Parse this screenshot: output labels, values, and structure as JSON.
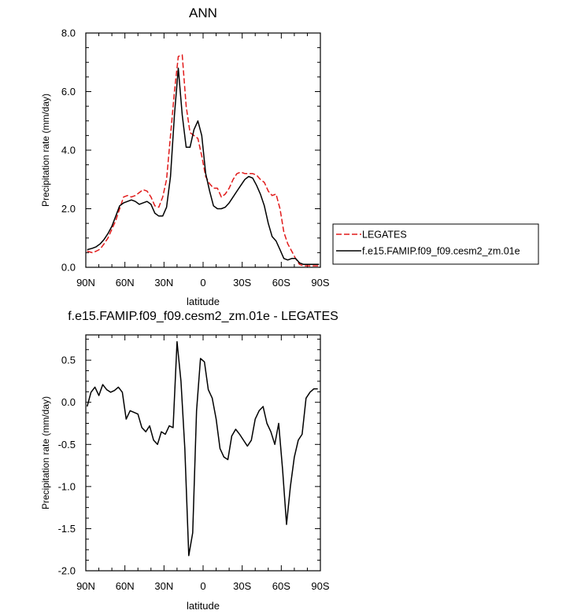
{
  "chart_data": [
    {
      "type": "line",
      "title": "ANN",
      "xlabel": "latitude",
      "ylabel": "Precipitation rate (mm/day)",
      "xlim": [
        90,
        -90
      ],
      "ylim": [
        0,
        8
      ],
      "x_ticks": [
        90,
        60,
        30,
        0,
        -30,
        -60,
        -90
      ],
      "x_tick_labels": [
        "90N",
        "60N",
        "30N",
        "0",
        "30S",
        "60S",
        "90S"
      ],
      "y_ticks": [
        0,
        2,
        4,
        6,
        8
      ],
      "y_tick_labels": [
        "0.0",
        "2.0",
        "4.0",
        "6.0",
        "8.0"
      ],
      "legend_position": "right",
      "series": [
        {
          "name": "LEGATES",
          "color": "#e11a1a",
          "style": "dashed",
          "x": [
            89,
            85,
            82,
            79,
            76,
            73,
            70,
            67,
            64,
            61,
            58,
            55,
            52,
            49,
            46,
            43,
            40,
            37,
            34,
            31,
            28,
            25,
            22,
            19,
            16,
            13,
            10,
            7,
            4,
            1,
            -2,
            -5,
            -8,
            -11,
            -14,
            -17,
            -20,
            -23,
            -26,
            -29,
            -32,
            -35,
            -38,
            -41,
            -44,
            -47,
            -50,
            -53,
            -56,
            -59,
            -62,
            -65,
            -68,
            -71,
            -74,
            -77,
            -80,
            -83,
            -86,
            -89
          ],
          "values": [
            0.55,
            0.5,
            0.55,
            0.62,
            0.8,
            1.0,
            1.3,
            1.6,
            2.0,
            2.4,
            2.45,
            2.4,
            2.45,
            2.55,
            2.65,
            2.6,
            2.4,
            2.1,
            2.05,
            2.4,
            3.0,
            4.5,
            6.0,
            7.2,
            7.25,
            5.5,
            4.6,
            4.5,
            4.4,
            3.8,
            3.1,
            2.85,
            2.7,
            2.7,
            2.4,
            2.5,
            2.7,
            3.0,
            3.2,
            3.25,
            3.2,
            3.2,
            3.2,
            3.15,
            3.0,
            2.9,
            2.6,
            2.45,
            2.5,
            2.0,
            1.2,
            0.8,
            0.55,
            0.3,
            0.1,
            0.05,
            0.05,
            0.05,
            0.05,
            0.05
          ]
        },
        {
          "name": "f.e15.FAMIP.f09_f09.cesm2_zm.01e",
          "color": "#000000",
          "style": "solid",
          "x": [
            89,
            85,
            82,
            79,
            76,
            73,
            70,
            67,
            64,
            61,
            58,
            55,
            52,
            49,
            46,
            43,
            40,
            37,
            34,
            31,
            28,
            25,
            22,
            19,
            16,
            13,
            10,
            7,
            4,
            1,
            -2,
            -5,
            -8,
            -11,
            -14,
            -17,
            -20,
            -23,
            -26,
            -29,
            -32,
            -35,
            -38,
            -41,
            -44,
            -47,
            -50,
            -53,
            -56,
            -59,
            -62,
            -65,
            -68,
            -71,
            -74,
            -77,
            -80,
            -83,
            -86,
            -89
          ],
          "values": [
            0.6,
            0.65,
            0.7,
            0.8,
            0.95,
            1.15,
            1.4,
            1.75,
            2.1,
            2.2,
            2.25,
            2.3,
            2.25,
            2.15,
            2.2,
            2.25,
            2.15,
            1.85,
            1.75,
            1.75,
            2.05,
            3.1,
            5.2,
            6.8,
            5.2,
            4.1,
            4.1,
            4.7,
            5.0,
            4.5,
            3.2,
            2.6,
            2.1,
            2.0,
            2.0,
            2.05,
            2.2,
            2.4,
            2.6,
            2.8,
            3.0,
            3.1,
            3.05,
            2.8,
            2.5,
            2.1,
            1.5,
            1.05,
            0.9,
            0.6,
            0.3,
            0.25,
            0.3,
            0.3,
            0.15,
            0.1,
            0.1,
            0.1,
            0.1,
            0.1
          ]
        }
      ]
    },
    {
      "type": "line",
      "title": "f.e15.FAMIP.f09_f09.cesm2_zm.01e - LEGATES",
      "xlabel": "latitude",
      "ylabel": "Precipitation rate (mm/day)",
      "xlim": [
        90,
        -90
      ],
      "ylim": [
        -2.0,
        0.8
      ],
      "x_ticks": [
        90,
        60,
        30,
        0,
        -30,
        -60,
        -90
      ],
      "x_tick_labels": [
        "90N",
        "60N",
        "30N",
        "0",
        "30S",
        "60S",
        "90S"
      ],
      "y_ticks": [
        0.5,
        0.0,
        -0.5,
        -1.0,
        -1.5,
        -2.0
      ],
      "y_tick_labels": [
        "0.5",
        "0.0",
        "-0.5",
        "-1.0",
        "-1.5",
        "-2.0"
      ],
      "series": [
        {
          "name": "",
          "color": "#000000",
          "style": "solid",
          "x": [
            89,
            86,
            83,
            80,
            77,
            74,
            71,
            68,
            65,
            62,
            59,
            56,
            53,
            50,
            47,
            44,
            41,
            38,
            35,
            32,
            29,
            26,
            23,
            20,
            17,
            14,
            11,
            8,
            5,
            2,
            -1,
            -4,
            -7,
            -10,
            -13,
            -16,
            -19,
            -22,
            -25,
            -28,
            -31,
            -34,
            -37,
            -40,
            -43,
            -46,
            -49,
            -52,
            -55,
            -58,
            -61,
            -64,
            -67,
            -70,
            -73,
            -76,
            -79,
            -82,
            -85,
            -88
          ],
          "values": [
            -0.05,
            0.12,
            0.18,
            0.08,
            0.21,
            0.15,
            0.12,
            0.14,
            0.18,
            0.12,
            -0.2,
            -0.1,
            -0.12,
            -0.14,
            -0.3,
            -0.35,
            -0.28,
            -0.45,
            -0.5,
            -0.35,
            -0.38,
            -0.28,
            -0.3,
            0.72,
            0.25,
            -0.55,
            -1.82,
            -1.55,
            -0.1,
            0.52,
            0.48,
            0.15,
            0.05,
            -0.2,
            -0.55,
            -0.65,
            -0.68,
            -0.4,
            -0.32,
            -0.38,
            -0.45,
            -0.52,
            -0.45,
            -0.2,
            -0.1,
            -0.05,
            -0.25,
            -0.35,
            -0.5,
            -0.25,
            -0.8,
            -1.45,
            -1.0,
            -0.65,
            -0.45,
            -0.38,
            0.05,
            0.12,
            0.16,
            0.16
          ]
        }
      ]
    }
  ]
}
